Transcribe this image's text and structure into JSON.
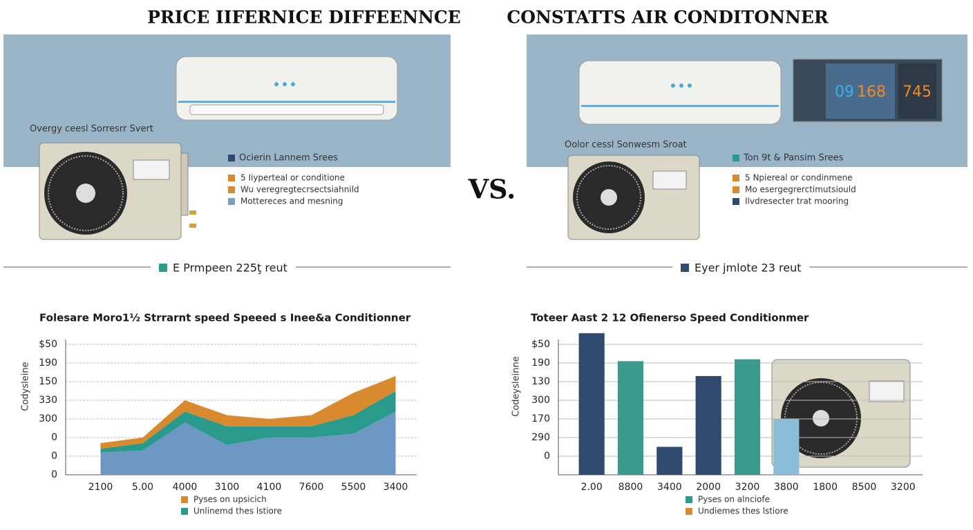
{
  "panels": [
    {
      "title": "PRICE IIFERNICE DIFFEENNCE",
      "label": "Overgy ceesl Sorresrr Svert",
      "items": [
        {
          "text": "Ocierin Lannem Srees",
          "color": "#2f4a6e"
        },
        {
          "text": "5 Iiyperteal or conditione",
          "color": "#d98a2e"
        },
        {
          "text": "Wu veregregtecrsectsiahnild",
          "color": "#d98a2e"
        },
        {
          "text": "Mottereces and mesning",
          "color": "#7aa0c0"
        }
      ],
      "footer": {
        "text": "E Prmpeen 225ţ reut",
        "color": "#2a9a8c"
      }
    },
    {
      "title": "CONSTATTS AIR CONDITONNER",
      "label": "Oolor cessl Sonwesm Sroat",
      "items": [
        {
          "text": "Ton 9t & Pansim Srees",
          "color": "#2a9a8c"
        },
        {
          "text": "5 Npiereal or condinmene",
          "color": "#d98a2e"
        },
        {
          "text": "Mo esergegrerctimutsiould",
          "color": "#d98a2e"
        },
        {
          "text": "Ilvdresecter trat mooring",
          "color": "#2f4a6e"
        }
      ],
      "footer": {
        "text": "Eyer jmlote 23 reut",
        "color": "#2f4a6e"
      },
      "display": [
        "09",
        "168",
        "745"
      ]
    }
  ],
  "vs": "VS.",
  "chart_data": [
    {
      "type": "area",
      "title": "Folesare Moro1½ Strrarnt speed Speeed s Inee&a Conditionner",
      "ylabel": "Codysleine",
      "categories": [
        "2100",
        "5.00",
        "4000",
        "3100",
        "4100",
        "7600",
        "5500",
        "3400"
      ],
      "series": [
        {
          "color": "#6f97c4",
          "values": [
            1.2,
            1.3,
            2.8,
            1.6,
            2.0,
            2.0,
            2.2,
            3.4
          ]
        },
        {
          "name": "Unlinemd thes lstiore",
          "color": "#2a9a8c",
          "values": [
            0.2,
            0.4,
            0.6,
            1.0,
            0.6,
            0.6,
            1.0,
            1.1
          ]
        },
        {
          "name": "Pyses on upsicich",
          "color": "#d98a2e",
          "values": [
            0.3,
            0.3,
            0.6,
            0.6,
            0.4,
            0.6,
            1.2,
            0.8
          ]
        }
      ],
      "ylim": [
        0,
        8
      ],
      "yticks": [
        {
          "value": 0,
          "label": "0"
        },
        {
          "value": 1,
          "label": "0"
        },
        {
          "value": 2,
          "label": "0"
        },
        {
          "value": 3,
          "label": "300"
        },
        {
          "value": 4,
          "label": "330"
        },
        {
          "value": 5,
          "label": "150"
        },
        {
          "value": 6,
          "label": "190"
        },
        {
          "value": 7,
          "label": "$50"
        }
      ],
      "grid": true
    },
    {
      "type": "bar",
      "title": "Toteer Aast 2 12 Ofienerso Speed Conditionmer",
      "ylabel": "Codeysleinne",
      "categories": [
        "2.00",
        "8800",
        "3400",
        "2000",
        "3200",
        "3800",
        "1800",
        "8500",
        "3200"
      ],
      "series": [
        {
          "values": [
            7.6,
            6.1,
            1.5,
            5.3,
            6.2,
            3.0,
            null,
            null,
            null
          ],
          "colors": [
            "#2f4a6e",
            "#3a9a8e",
            "#2f4a6e",
            "#2f4a6e",
            "#3a9a8e",
            "#8bbcd8",
            null,
            null,
            null
          ]
        }
      ],
      "legend": [
        {
          "name": "Pyses on alnciofe",
          "color": "#2a9a8c"
        },
        {
          "name": "Undiemes thes lstiore",
          "color": "#d98a2e"
        }
      ],
      "ylim": [
        0,
        8
      ],
      "yticks": [
        {
          "value": 1,
          "label": "0"
        },
        {
          "value": 2,
          "label": "290"
        },
        {
          "value": 3,
          "label": "170"
        },
        {
          "value": 4,
          "label": "300"
        },
        {
          "value": 5,
          "label": "130"
        },
        {
          "value": 6,
          "label": "190"
        },
        {
          "value": 7,
          "label": "$50"
        }
      ],
      "grid": true
    }
  ]
}
